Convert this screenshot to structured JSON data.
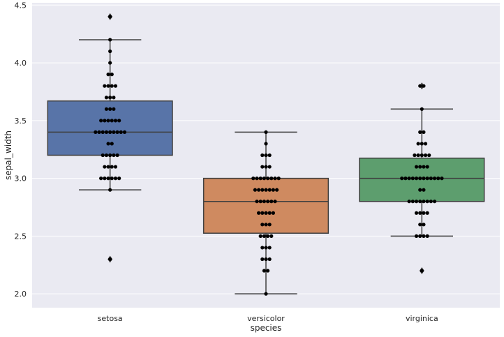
{
  "chart_data": {
    "type": "box",
    "title": "",
    "xlabel": "species",
    "ylabel": "sepal_width",
    "ylim": [
      1.88,
      4.52
    ],
    "yticks": [
      "2.0",
      "2.5",
      "3.0",
      "3.5",
      "4.0",
      "4.5"
    ],
    "grid": true,
    "categories": [
      "setosa",
      "versicolor",
      "virginica"
    ],
    "boxes": [
      {
        "name": "setosa",
        "color": "#5874a8",
        "q1": 3.2,
        "median": 3.4,
        "q3": 3.67,
        "whisker_low": 2.9,
        "whisker_high": 4.2,
        "outliers": [
          4.4,
          2.3
        ]
      },
      {
        "name": "versicolor",
        "color": "#cf8a60",
        "q1": 2.525,
        "median": 2.8,
        "q3": 3.0,
        "whisker_low": 2.0,
        "whisker_high": 3.4,
        "outliers": []
      },
      {
        "name": "virginica",
        "color": "#5d9e6e",
        "q1": 2.8,
        "median": 3.0,
        "q3": 3.175,
        "whisker_low": 2.5,
        "whisker_high": 3.6,
        "outliers": [
          3.8,
          2.2
        ]
      }
    ],
    "swarm": [
      {
        "name": "setosa",
        "values": [
          2.3,
          2.9,
          3.0,
          3.0,
          3.0,
          3.0,
          3.0,
          3.0,
          3.1,
          3.1,
          3.1,
          3.1,
          3.2,
          3.2,
          3.2,
          3.2,
          3.2,
          3.3,
          3.3,
          3.4,
          3.4,
          3.4,
          3.4,
          3.4,
          3.4,
          3.4,
          3.4,
          3.4,
          3.5,
          3.5,
          3.5,
          3.5,
          3.5,
          3.5,
          3.6,
          3.6,
          3.6,
          3.7,
          3.7,
          3.7,
          3.8,
          3.8,
          3.8,
          3.8,
          3.9,
          3.9,
          4.0,
          4.1,
          4.2,
          4.4
        ]
      },
      {
        "name": "versicolor",
        "values": [
          2.0,
          2.2,
          2.2,
          2.3,
          2.3,
          2.3,
          2.4,
          2.4,
          2.4,
          2.5,
          2.5,
          2.5,
          2.5,
          2.6,
          2.6,
          2.6,
          2.7,
          2.7,
          2.7,
          2.7,
          2.7,
          2.8,
          2.8,
          2.8,
          2.8,
          2.8,
          2.8,
          2.9,
          2.9,
          2.9,
          2.9,
          2.9,
          2.9,
          2.9,
          3.0,
          3.0,
          3.0,
          3.0,
          3.0,
          3.0,
          3.0,
          3.0,
          3.1,
          3.1,
          3.1,
          3.2,
          3.2,
          3.2,
          3.3,
          3.4
        ]
      },
      {
        "name": "virginica",
        "values": [
          2.2,
          2.5,
          2.5,
          2.5,
          2.5,
          2.6,
          2.6,
          2.7,
          2.7,
          2.7,
          2.7,
          2.8,
          2.8,
          2.8,
          2.8,
          2.8,
          2.8,
          2.8,
          2.8,
          2.9,
          2.9,
          3.0,
          3.0,
          3.0,
          3.0,
          3.0,
          3.0,
          3.0,
          3.0,
          3.0,
          3.0,
          3.0,
          3.0,
          3.1,
          3.1,
          3.1,
          3.1,
          3.2,
          3.2,
          3.2,
          3.2,
          3.2,
          3.3,
          3.3,
          3.3,
          3.4,
          3.4,
          3.6,
          3.8,
          3.8
        ]
      }
    ],
    "colors": {
      "background": "#eaeaf2",
      "grid": "#ffffff",
      "line": "#3f3f3f",
      "point": "#000000"
    }
  }
}
